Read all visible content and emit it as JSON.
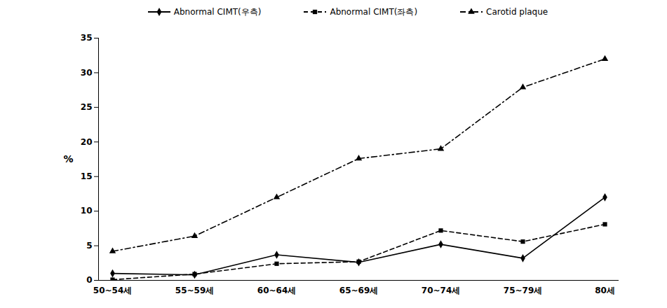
{
  "chart_data": {
    "type": "line",
    "y_label": "%",
    "categories": [
      "50~54세",
      "55~59세",
      "60~64세",
      "65~69세",
      "70~74세",
      "75~79세",
      "80세"
    ],
    "series": [
      {
        "name": "Abnormal CIMT(우측)",
        "color": "#000000",
        "marker": "diamond",
        "line_style": "solid",
        "values": [
          1.0,
          0.8,
          3.7,
          2.6,
          5.2,
          3.2,
          12.0
        ]
      },
      {
        "name": "Abnormal CIMT(좌측)",
        "color": "#000000",
        "marker": "square",
        "line_style": "dashed",
        "values": [
          0.1,
          0.9,
          2.4,
          2.7,
          7.2,
          5.6,
          8.1
        ]
      },
      {
        "name": "Carotid plaque",
        "color": "#000000",
        "marker": "triangle",
        "line_style": "dashdot",
        "values": [
          4.2,
          6.4,
          12.0,
          17.6,
          19.0,
          27.9,
          32.0
        ]
      }
    ],
    "ylim": [
      0,
      35
    ],
    "yticks": [
      0,
      5,
      10,
      15,
      20,
      25,
      30,
      35
    ],
    "grid": false,
    "legend": "top"
  }
}
